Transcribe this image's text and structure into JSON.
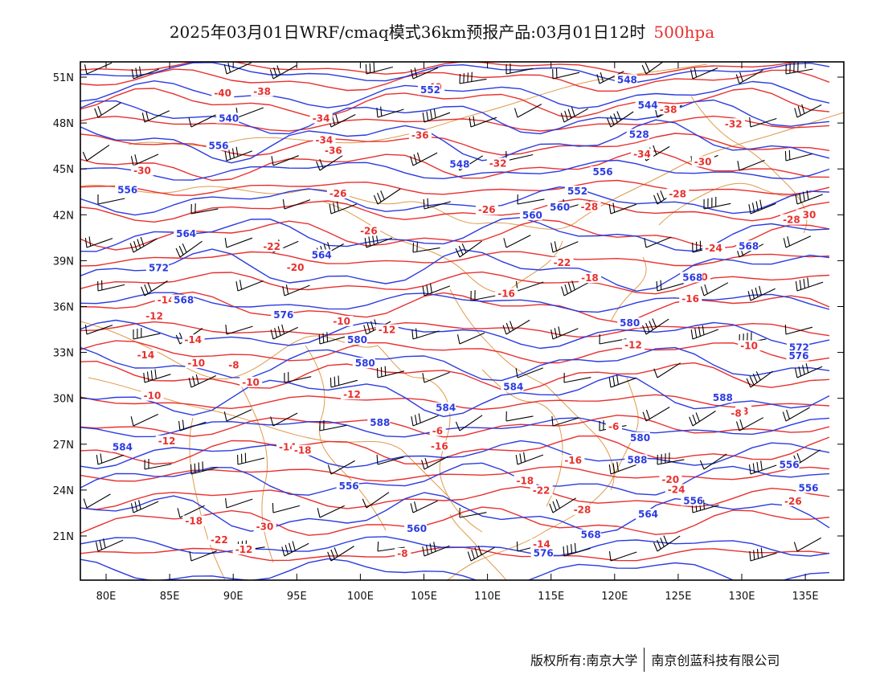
{
  "title": {
    "main": "2025年03月01日WRF/cmaq模式36km预报产品:03月01日12时",
    "level": "500hpa",
    "level_color": "#e8302e"
  },
  "map": {
    "lat_labels": [
      "51N",
      "48N",
      "45N",
      "42N",
      "39N",
      "36N",
      "33N",
      "30N",
      "27N",
      "24N",
      "21N"
    ],
    "lon_labels": [
      "80E",
      "85E",
      "90E",
      "95E",
      "100E",
      "105E",
      "110E",
      "115E",
      "120E",
      "125E",
      "130E",
      "135E"
    ],
    "height_color": "#2b3be0",
    "temp_color": "#e8302e",
    "border_color": "#e09a4a",
    "barb_color": "#000000",
    "height_labels": [
      "548",
      "552",
      "544",
      "540",
      "528",
      "556",
      "548",
      "556",
      "552",
      "556",
      "560",
      "560",
      "564",
      "568",
      "564",
      "572",
      "568",
      "568",
      "576",
      "580",
      "580",
      "572",
      "576",
      "580",
      "584",
      "588",
      "584",
      "588",
      "580",
      "584",
      "588",
      "556",
      "556",
      "556",
      "556",
      "564",
      "560",
      "568",
      "576"
    ],
    "temp_labels": [
      "-40",
      "-38",
      "-40",
      "-38",
      "-32",
      "-34",
      "-36",
      "-34",
      "-36",
      "-34",
      "-30",
      "-32",
      "-30",
      "-28",
      "-26",
      "-28",
      "-26",
      "-30",
      "-28",
      "-26",
      "-24",
      "-22",
      "-22",
      "-20",
      "-20",
      "-18",
      "-16",
      "-14",
      "-16",
      "-12",
      "-10",
      "-12",
      "-14",
      "-10",
      "-12",
      "-14",
      "-10",
      "-8",
      "-10",
      "-12",
      "-10",
      "-8",
      "-8",
      "-6",
      "-6",
      "-12",
      "-16",
      "-14",
      "-18",
      "-16",
      "-18",
      "-20",
      "-22",
      "-24",
      "-26",
      "-28",
      "-30",
      "-18",
      "-22",
      "-12",
      "-14",
      "-8"
    ]
  },
  "copyright": {
    "left": "版权所有:南京大学",
    "right": "南京创蓝科技有限公司"
  }
}
